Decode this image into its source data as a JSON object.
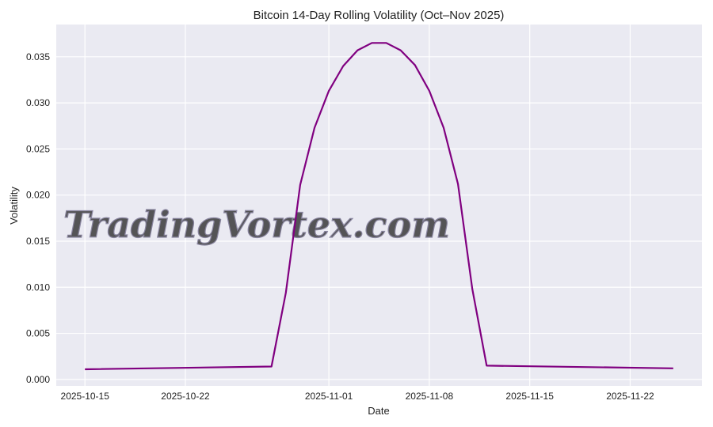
{
  "chart_data": {
    "type": "line",
    "title": "Bitcoin 14-Day Rolling Volatility (Oct–Nov 2025)",
    "xlabel": "Date",
    "ylabel": "Volatility",
    "grid": true,
    "xlim": [
      "2025-10-13",
      "2025-11-27"
    ],
    "ylim": [
      -0.0007,
      0.0385
    ],
    "x_ticks": [
      "2025-10-15",
      "2025-10-22",
      "2025-11-01",
      "2025-11-08",
      "2025-11-15",
      "2025-11-22"
    ],
    "y_ticks": [
      "0.000",
      "0.005",
      "0.010",
      "0.015",
      "0.020",
      "0.025",
      "0.030",
      "0.035"
    ],
    "series": [
      {
        "color": "#800080",
        "x": [
          "2025-10-15",
          "2025-10-28",
          "2025-10-29",
          "2025-10-30",
          "2025-10-31",
          "2025-11-01",
          "2025-11-02",
          "2025-11-03",
          "2025-11-04",
          "2025-11-05",
          "2025-11-06",
          "2025-11-07",
          "2025-11-08",
          "2025-11-09",
          "2025-11-10",
          "2025-11-11",
          "2025-11-12",
          "2025-11-25"
        ],
        "y": [
          0.0011,
          0.0014,
          0.0094,
          0.0211,
          0.0273,
          0.0313,
          0.034,
          0.0357,
          0.0365,
          0.0365,
          0.0357,
          0.0341,
          0.0313,
          0.0273,
          0.0212,
          0.0098,
          0.0015,
          0.0012
        ]
      }
    ]
  },
  "watermark": "TradingVortex.com"
}
